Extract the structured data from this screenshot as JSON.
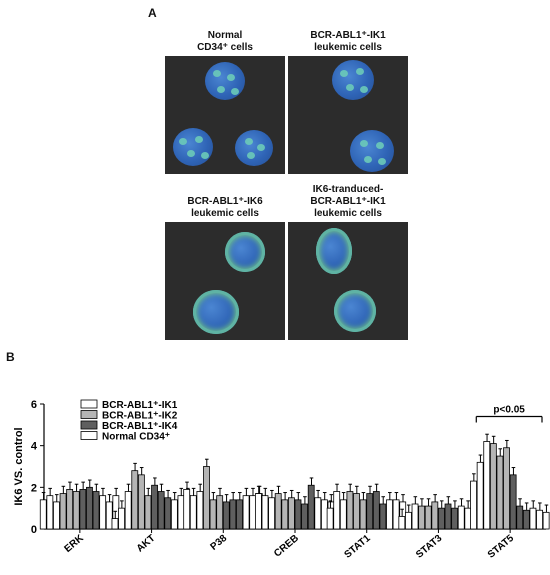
{
  "panel_a": {
    "label": "A",
    "images": [
      {
        "caption_lines": [
          "Normal",
          "CD34⁺ cells"
        ]
      },
      {
        "caption_lines": [
          "BCR-ABL1⁺-IK1",
          "leukemic cells"
        ]
      },
      {
        "caption_lines": [
          "BCR-ABL1⁺-IK6",
          "leukemic cells"
        ]
      },
      {
        "caption_lines": [
          "IK6-tranduced-",
          "BCR-ABL1⁺-IK1",
          "leukemic cells"
        ]
      }
    ]
  },
  "panel_b": {
    "label": "B"
  },
  "chart_data": {
    "type": "bar",
    "ylabel": "IK6 VS. control",
    "ylim": [
      0,
      6
    ],
    "yticks": [
      "0",
      "2",
      "4",
      "6"
    ],
    "categories": [
      "ERK",
      "AKT",
      "P38",
      "CREB",
      "STAT1",
      "STAT3",
      "STAT5"
    ],
    "legend": {
      "position": "top-left"
    },
    "annotation": "p<0.05",
    "series": [
      {
        "name": "BCR-ABL1⁺-IK1",
        "color": "#ffffff",
        "values": [
          [
            1.4,
            1.6,
            1.3
          ],
          [
            0.5,
            1.0,
            1.8
          ],
          [
            1.9,
            1.6,
            1.8
          ],
          [
            1.7,
            1.6,
            1.5
          ],
          [
            1.0,
            1.8,
            1.4
          ],
          [
            0.6,
            0.8,
            1.2
          ],
          [
            2.3,
            3.2,
            4.2
          ]
        ]
      },
      {
        "name": "BCR-ABL1⁺-IK2",
        "color": "#b5b5b5",
        "values": [
          [
            1.7,
            1.9,
            1.8
          ],
          [
            2.8,
            2.6,
            1.6
          ],
          [
            3.0,
            1.4,
            1.6
          ],
          [
            1.7,
            1.4,
            1.5
          ],
          [
            1.8,
            1.7,
            1.4
          ],
          [
            1.1,
            1.1,
            1.3
          ],
          [
            4.1,
            3.5,
            3.9
          ]
        ]
      },
      {
        "name": "BCR-ABL1⁺-IK4",
        "color": "#5f5f5f",
        "values": [
          [
            1.9,
            2.0,
            1.8
          ],
          [
            2.1,
            1.8,
            1.5
          ],
          [
            1.3,
            1.4,
            1.4
          ],
          [
            1.4,
            1.2,
            2.1
          ],
          [
            1.7,
            1.8,
            1.2
          ],
          [
            1.0,
            1.2,
            1.0
          ],
          [
            2.6,
            1.1,
            0.9
          ]
        ]
      },
      {
        "name": "Normal CD34⁺",
        "color": "#ffffff",
        "values": [
          [
            1.6,
            1.3,
            1.6
          ],
          [
            1.4,
            1.6,
            1.6
          ],
          [
            1.6,
            1.6,
            1.7
          ],
          [
            1.5,
            1.4,
            1.3
          ],
          [
            1.4,
            1.4,
            1.3
          ],
          [
            1.1,
            1.0,
            0.9
          ],
          [
            1.0,
            0.9,
            0.8
          ]
        ]
      }
    ]
  }
}
